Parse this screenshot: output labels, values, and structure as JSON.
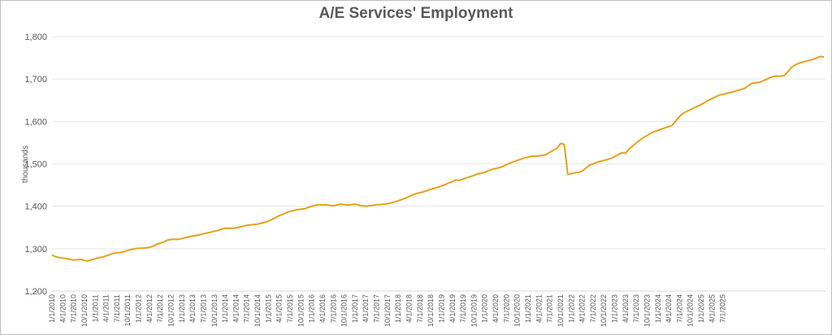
{
  "chart_data": {
    "type": "line",
    "title": "A/E Services' Employment",
    "xlabel": "",
    "ylabel": "thousands",
    "ylim": [
      1200,
      1800
    ],
    "yticks": [
      "1,200",
      "1,300",
      "1,400",
      "1,500",
      "1,600",
      "1,700",
      "1,800"
    ],
    "grid": true,
    "color": "#E4A21C",
    "x_start": "1/1/2010",
    "x_end": "9/1/2025",
    "xticks": [
      "1/1/2010",
      "4/1/2010",
      "7/1/2010",
      "10/1/2010",
      "1/1/2011",
      "4/1/2011",
      "7/1/2011",
      "10/1/2011",
      "1/1/2012",
      "4/1/2012",
      "7/1/2012",
      "10/1/2012",
      "1/1/2013",
      "4/1/2013",
      "7/1/2013",
      "10/1/2013",
      "1/1/2014",
      "4/1/2014",
      "7/1/2014",
      "10/1/2014",
      "1/1/2015",
      "4/1/2015",
      "7/1/2015",
      "10/1/2015",
      "1/1/2016",
      "4/1/2016",
      "7/1/2016",
      "10/1/2016",
      "1/1/2017",
      "4/1/2017",
      "7/1/2017",
      "10/1/2017",
      "1/1/2018",
      "4/1/2018",
      "7/1/2018",
      "10/1/2018",
      "1/1/2019",
      "4/1/2019",
      "7/1/2019",
      "10/1/2019",
      "1/1/2020",
      "4/1/2020",
      "7/1/2020",
      "10/1/2020",
      "1/1/2021",
      "4/1/2021",
      "7/1/2021",
      "10/1/2021",
      "1/1/2022",
      "4/1/2022",
      "7/1/2022",
      "10/1/2022",
      "1/1/2023",
      "4/1/2023",
      "7/1/2023",
      "10/1/2023",
      "1/1/2024",
      "4/1/2024",
      "7/1/2024",
      "10/1/2024",
      "1/1/2025",
      "4/1/2025",
      "7/1/2025"
    ],
    "series": [
      {
        "values": [
          1285,
          1281,
          1279,
          1278,
          1277,
          1275,
          1273,
          1274,
          1275,
          1272,
          1271,
          1274,
          1276,
          1279,
          1280,
          1283,
          1286,
          1289,
          1290,
          1291,
          1293,
          1296,
          1298,
          1300,
          1301,
          1301,
          1302,
          1303,
          1306,
          1310,
          1313,
          1316,
          1320,
          1322,
          1322,
          1322,
          1324,
          1326,
          1328,
          1330,
          1331,
          1333,
          1335,
          1337,
          1339,
          1341,
          1343,
          1346,
          1348,
          1348,
          1348,
          1349,
          1351,
          1353,
          1355,
          1356,
          1357,
          1358,
          1360,
          1362,
          1365,
          1369,
          1373,
          1378,
          1381,
          1385,
          1388,
          1390,
          1392,
          1393,
          1394,
          1397,
          1400,
          1402,
          1404,
          1403,
          1404,
          1402,
          1401,
          1403,
          1405,
          1404,
          1403,
          1404,
          1405,
          1403,
          1401,
          1400,
          1401,
          1402,
          1404,
          1404,
          1405,
          1406,
          1408,
          1410,
          1413,
          1416,
          1419,
          1423,
          1427,
          1430,
          1432,
          1434,
          1437,
          1440,
          1442,
          1445,
          1448,
          1451,
          1455,
          1458,
          1462,
          1461,
          1464,
          1467,
          1470,
          1473,
          1476,
          1478,
          1480,
          1484,
          1487,
          1489,
          1491,
          1494,
          1498,
          1502,
          1505,
          1508,
          1511,
          1514,
          1516,
          1518,
          1518,
          1519,
          1520,
          1522,
          1527,
          1532,
          1537,
          1548,
          1546,
          1475,
          1477,
          1479,
          1480,
          1483,
          1490,
          1497,
          1500,
          1503,
          1506,
          1508,
          1510,
          1513,
          1517,
          1522,
          1526,
          1525,
          1535,
          1542,
          1550,
          1556,
          1562,
          1567,
          1572,
          1576,
          1579,
          1582,
          1585,
          1588,
          1591,
          1602,
          1612,
          1619,
          1624,
          1628,
          1632,
          1636,
          1640,
          1645,
          1650,
          1654,
          1658,
          1662,
          1664,
          1666,
          1668,
          1670,
          1673,
          1675,
          1678,
          1684,
          1690,
          1691,
          1692,
          1695,
          1699,
          1703,
          1706,
          1707,
          1707,
          1708,
          1717,
          1727,
          1733,
          1737,
          1740,
          1742,
          1744,
          1746,
          1750,
          1753,
          1752
        ]
      }
    ]
  }
}
